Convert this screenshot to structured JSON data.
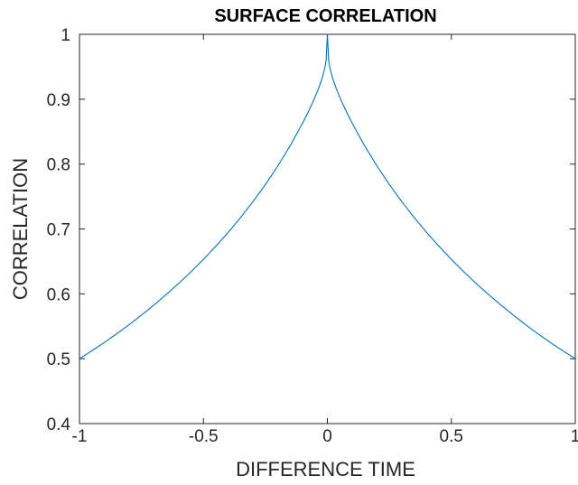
{
  "chart_data": {
    "type": "line",
    "title": "SURFACE CORRELATION",
    "xlabel": "DIFFERENCE TIME",
    "ylabel": "CORRELATION",
    "xlim": [
      -1,
      1
    ],
    "ylim": [
      0.4,
      1
    ],
    "xticks": [
      -1,
      -0.5,
      0,
      0.5,
      1
    ],
    "xtick_labels": [
      "-1",
      "-0.5",
      "0",
      "0.5",
      "1"
    ],
    "yticks": [
      0.4,
      0.5,
      0.6,
      0.7,
      0.8,
      0.9,
      1
    ],
    "ytick_labels": [
      "0.4",
      "0.5",
      "0.6",
      "0.7",
      "0.8",
      "0.9",
      "1"
    ],
    "grid": false,
    "line_color": "#0072BD",
    "series": [
      {
        "x": [
          -1,
          -0.95,
          -0.9,
          -0.85,
          -0.8,
          -0.75,
          -0.7,
          -0.65,
          -0.6,
          -0.55,
          -0.5,
          -0.45,
          -0.4,
          -0.35,
          -0.3,
          -0.25,
          -0.2,
          -0.15,
          -0.1,
          -0.08,
          -0.06,
          -0.04,
          -0.03,
          -0.02,
          -0.01,
          -0.005,
          0,
          0.005,
          0.01,
          0.02,
          0.03,
          0.04,
          0.06,
          0.08,
          0.1,
          0.15,
          0.2,
          0.25,
          0.3,
          0.35,
          0.4,
          0.45,
          0.5,
          0.55,
          0.6,
          0.65,
          0.7,
          0.75,
          0.8,
          0.85,
          0.9,
          0.95,
          1
        ],
        "y": [
          0.5,
          0.5122,
          0.5249,
          0.5383,
          0.5524,
          0.5671,
          0.5826,
          0.5989,
          0.616,
          0.6341,
          0.6532,
          0.6734,
          0.6948,
          0.7177,
          0.7422,
          0.7685,
          0.7971,
          0.8283,
          0.8631,
          0.8782,
          0.8943,
          0.9124,
          0.9225,
          0.9338,
          0.9486,
          0.9608,
          1.0,
          0.9608,
          0.9486,
          0.9338,
          0.9225,
          0.9124,
          0.8943,
          0.8782,
          0.8631,
          0.8283,
          0.7971,
          0.7685,
          0.7422,
          0.7177,
          0.6948,
          0.6734,
          0.6532,
          0.6341,
          0.616,
          0.5989,
          0.5826,
          0.5671,
          0.5524,
          0.5383,
          0.5249,
          0.5122,
          0.5
        ]
      }
    ]
  }
}
